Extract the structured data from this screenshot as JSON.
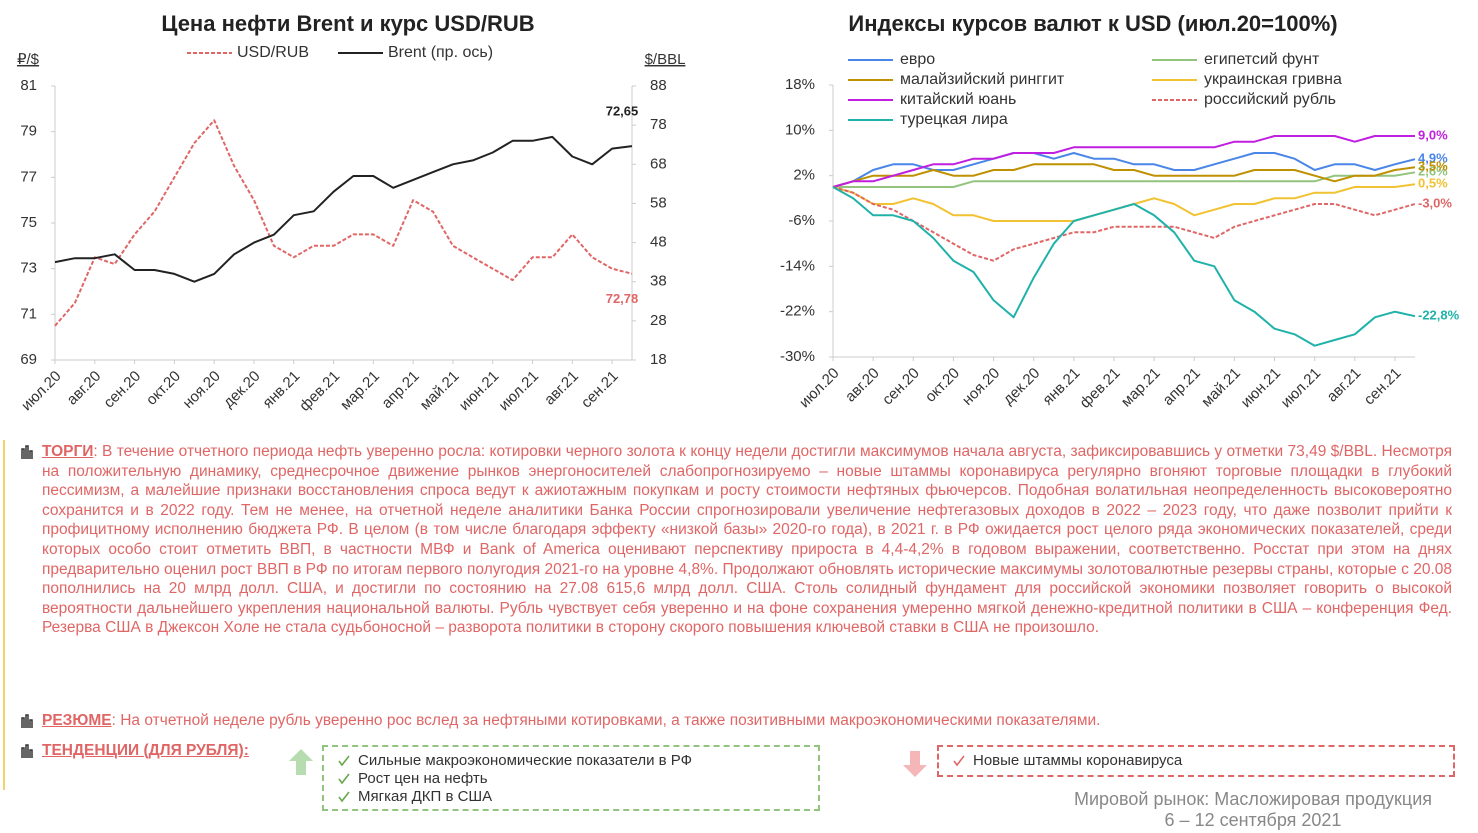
{
  "chart_data": [
    {
      "type": "line",
      "title": "Цена нефти Brent и курс USD/RUB",
      "ylabel": "₽/$",
      "y2label": "$/BBL",
      "categories": [
        "июл.20",
        null,
        "авг.20",
        null,
        "сен.20",
        null,
        "окт.20",
        null,
        "ноя.20",
        null,
        "дек.20",
        null,
        "янв.21",
        null,
        "фев.21",
        null,
        "мар.21",
        null,
        "апр.21",
        null,
        "май.21",
        null,
        "июн.21",
        null,
        "июл.21",
        null,
        "авг.21",
        null,
        "сен.21",
        null
      ],
      "series": [
        {
          "name": "USD/RUB",
          "color": "#e06666",
          "dash": true,
          "end_label": "72,78",
          "values": [
            70.5,
            71.5,
            73.5,
            73.2,
            74.5,
            75.5,
            77,
            78.5,
            79.5,
            77.5,
            76,
            74,
            73.5,
            74,
            74,
            74.5,
            74.5,
            74,
            76,
            75.5,
            74,
            73.5,
            73,
            72.5,
            73.5,
            73.5,
            74.5,
            73.5,
            73,
            72.78
          ]
        },
        {
          "name": "Brent (пр. ось)",
          "color": "#222222",
          "axis": "y2",
          "end_label": "72,65",
          "values": [
            43,
            44,
            44,
            45,
            41,
            41,
            40,
            38,
            40,
            45,
            48,
            50,
            55,
            56,
            61,
            65,
            65,
            62,
            64,
            66,
            68,
            69,
            71,
            74,
            74,
            75,
            70,
            68,
            72,
            72.65
          ]
        }
      ],
      "ylim": [
        69,
        81
      ],
      "yticks": [
        69,
        71,
        73,
        75,
        77,
        79,
        81
      ],
      "y2lim": [
        18,
        88
      ],
      "y2ticks": [
        18,
        28,
        38,
        48,
        58,
        68,
        78,
        88
      ]
    },
    {
      "type": "line",
      "title": "Индексы курсов валют к USD (июл.20=100%)",
      "categories": [
        "июл.20",
        null,
        "авг.20",
        null,
        "сен.20",
        null,
        "окт.20",
        null,
        "ноя.20",
        null,
        "дек.20",
        null,
        "янв.21",
        null,
        "фев.21",
        null,
        "мар.21",
        null,
        "апр.21",
        null,
        "май.21",
        null,
        "июн.21",
        null,
        "июл.21",
        null,
        "авг.21",
        null,
        "сен.21",
        null
      ],
      "series": [
        {
          "name": "евро",
          "color": "#4a86e8",
          "end_label": "4,9%",
          "values": [
            0,
            1,
            3,
            4,
            4,
            3,
            3,
            4,
            5,
            6,
            6,
            5,
            6,
            5,
            5,
            4,
            4,
            3,
            3,
            4,
            5,
            6,
            6,
            5,
            3,
            4,
            4,
            3,
            4,
            4.9
          ]
        },
        {
          "name": "египетсий фунт",
          "color": "#93c47d",
          "end_label": "2,6%",
          "values": [
            0,
            0,
            0,
            0,
            0,
            0,
            0,
            1,
            1,
            1,
            1,
            1,
            1,
            1,
            1,
            1,
            1,
            1,
            1,
            1,
            1,
            1,
            1,
            1,
            1,
            2,
            2,
            2,
            2,
            2.6
          ]
        },
        {
          "name": "малайзийский ринггит",
          "color": "#bf9000",
          "end_label": "3,5%",
          "values": [
            0,
            1,
            2,
            2,
            2,
            3,
            2,
            2,
            3,
            3,
            4,
            4,
            4,
            4,
            3,
            3,
            2,
            2,
            2,
            2,
            2,
            3,
            3,
            3,
            2,
            1,
            2,
            2,
            3,
            3.5
          ]
        },
        {
          "name": "украинская гривна",
          "color": "#f1c232",
          "end_label": "0,5%",
          "values": [
            0,
            -1,
            -3,
            -3,
            -2,
            -3,
            -5,
            -5,
            -6,
            -6,
            -6,
            -6,
            -6,
            -5,
            -4,
            -3,
            -2,
            -3,
            -5,
            -4,
            -3,
            -3,
            -2,
            -2,
            -1,
            -1,
            0,
            0,
            0,
            0.5
          ]
        },
        {
          "name": "китайский юань",
          "color": "#c11fe0",
          "end_label": "9,0%",
          "values": [
            0,
            1,
            1,
            2,
            3,
            4,
            4,
            5,
            5,
            6,
            6,
            6,
            7,
            7,
            7,
            7,
            7,
            7,
            7,
            7,
            8,
            8,
            9,
            9,
            9,
            9,
            8,
            9,
            9,
            9.0
          ]
        },
        {
          "name": "российский рубль",
          "color": "#e06666",
          "dash": true,
          "end_label": "-3,0%",
          "values": [
            0,
            -1,
            -3,
            -4,
            -6,
            -8,
            -10,
            -12,
            -13,
            -11,
            -10,
            -9,
            -8,
            -8,
            -7,
            -7,
            -7,
            -7,
            -8,
            -9,
            -7,
            -6,
            -5,
            -4,
            -3,
            -3,
            -4,
            -5,
            -4,
            -3.0
          ]
        },
        {
          "name": "турецкая лира",
          "color": "#20b2aa",
          "end_label": "-22,8%",
          "values": [
            0,
            -2,
            -5,
            -5,
            -6,
            -9,
            -13,
            -15,
            -20,
            -23,
            -16,
            -10,
            -6,
            -5,
            -4,
            -3,
            -5,
            -8,
            -13,
            -14,
            -20,
            -22,
            -25,
            -26,
            -28,
            -27,
            -26,
            -23,
            -22,
            -22.8
          ]
        }
      ],
      "ylim": [
        -30,
        18
      ],
      "yticks": [
        {
          "value": -30,
          "label": "-30%"
        },
        {
          "value": -22,
          "label": "-22%"
        },
        {
          "value": -14,
          "label": "-14%"
        },
        {
          "value": -6,
          "label": "-6%"
        },
        {
          "value": 2,
          "label": "2%"
        },
        {
          "value": 10,
          "label": "10%"
        },
        {
          "value": 18,
          "label": "18%"
        }
      ]
    }
  ],
  "sections": [
    {
      "heading": "ТОРГИ",
      "text": ": В течение отчетного периода нефть уверенно росла: котировки черного золота к концу недели достигли максимумов начала августа, зафиксировавшись у отметки 73,49 $/BBL. Несмотря на положительную динамику, среднесрочное движение рынков энергоносителей слабопрогнозируемо – новые штаммы коронавируса регулярно вгоняют торговые площадки в глубокий пессимизм, а малейшие признаки восстановления спроса ведут к ажиотажным покупкам и росту стоимости нефтяных фьючерсов. Подобная волатильная неопределенность высоковероятно сохранится и в 2022 году. Тем не менее, на отчетной неделе аналитики Банка России спрогнозировали увеличение нефтегазовых доходов в 2022 – 2023 году, что даже позволит прийти к профицитному исполнению бюджета РФ. В целом (в том числе благодаря эффекту «низкой базы» 2020-го года), в 2021 г. в РФ ожидается рост целого ряда экономических показателей, среди которых особо стоит отметить ВВП, в частности МВФ и Bank of America оценивают перспективу прироста в 4,4-4,2% в годовом выражении, соответственно. Росстат при этом на днях предварительно оценил рост ВВП в РФ по итогам первого полугодия 2021-го на уровне 4,8%. Продолжают обновлять исторические максимумы золотовалютные резервы страны, которые с 20.08 пополнились на 20 млрд долл. США, и достигли по состоянию на 27.08 615,6 млрд долл. США. Столь солидный фундамент для российской экономики позволяет говорить о высокой вероятности дальнейшего укрепления национальной валюты. Рубль чувствует себя уверенно и на фоне сохранения умеренно мягкой денежно-кредитной политики в США – конференция Фед. Резерва США в Джексон Холе не стала судьбоносной – разворота политики в сторону скорого повышения ключевой ставки в США не произошло."
    },
    {
      "heading": "РЕЗЮМЕ",
      "text": ": На отчетной неделе рубль уверенно рос вслед за нефтяными котировками, а также позитивными макроэкономическими показателями."
    }
  ],
  "trends": {
    "heading": "ТЕНДЕНЦИИ (ДЛЯ РУБЛЯ):",
    "positive": [
      "Сильные макроэкономические показатели в РФ",
      "Рост цен на нефть",
      "Мягкая ДКП в США"
    ],
    "negative": [
      "Новые штаммы коронавируса"
    ]
  },
  "footer": {
    "title": "Мировой рынок: Масложировая продукция",
    "date": "6 – 12 сентября 2021"
  }
}
